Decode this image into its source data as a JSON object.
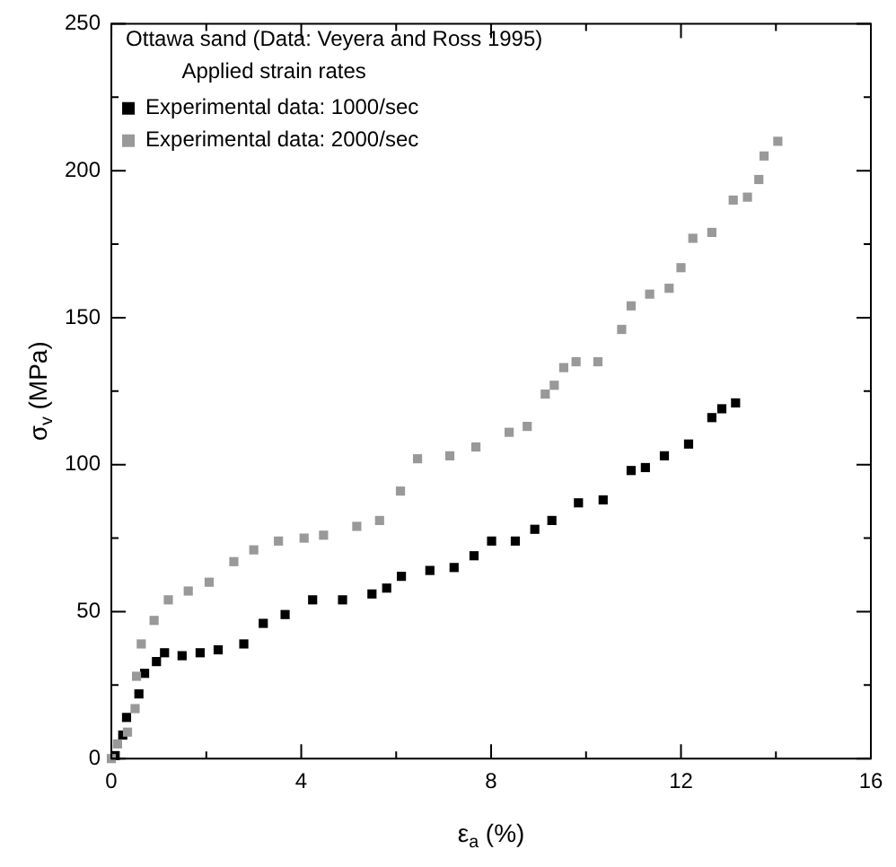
{
  "chart_data": {
    "type": "scatter",
    "title": "Ottawa sand (Data: Veyera and Ross 1995)",
    "legend_title": "Applied strain rates",
    "xlabel": "ε$_{a}$ (%)",
    "ylabel": "σ$_{v}$ (MPa)",
    "xlim": [
      0,
      16
    ],
    "xticks": [
      0,
      {
        "value": 2,
        "label": null
      },
      4,
      {
        "value": 6,
        "label": null
      },
      8,
      {
        "value": 10,
        "label": null
      },
      12,
      {
        "value": 14,
        "label": null
      },
      16
    ],
    "ylim": [
      0,
      250
    ],
    "yticks": [
      0,
      {
        "value": 25,
        "label": null
      },
      50,
      {
        "value": 75,
        "label": null
      },
      100,
      {
        "value": 125,
        "label": null
      },
      150,
      {
        "value": 175,
        "label": null
      },
      200,
      {
        "value": 225,
        "label": null
      },
      250
    ],
    "legend": "top left",
    "marker": "square",
    "grid": false,
    "series": [
      {
        "name": "Experimental data: 1000/sec",
        "color": "#000000",
        "x": [
          0.08,
          0.24,
          0.32,
          0.58,
          0.7,
          0.95,
          1.12,
          1.49,
          1.87,
          2.25,
          2.79,
          3.2,
          3.66,
          4.24,
          4.87,
          5.49,
          5.8,
          6.11,
          6.71,
          7.22,
          7.64,
          8.01,
          8.51,
          8.92,
          9.28,
          9.84,
          10.36,
          10.95,
          11.25,
          11.65,
          12.16,
          12.65,
          12.86,
          13.15
        ],
        "values": [
          1,
          8,
          14,
          22,
          29,
          33,
          36,
          35,
          36,
          37,
          39,
          46,
          49,
          54,
          54,
          56,
          58,
          62,
          64,
          65,
          69,
          74,
          74,
          78,
          81,
          87,
          88,
          98,
          99,
          103,
          107,
          116,
          119,
          121
        ]
      },
      {
        "name": "Experimental data: 2000/sec",
        "color": "#999999",
        "x": [
          0,
          0.13,
          0.34,
          0.5,
          0.53,
          0.63,
          0.9,
          1.2,
          1.62,
          2.06,
          2.58,
          3.0,
          3.52,
          4.06,
          4.47,
          5.17,
          5.65,
          6.09,
          6.45,
          7.13,
          7.68,
          8.38,
          8.76,
          9.14,
          9.33,
          9.53,
          9.79,
          10.25,
          10.75,
          10.95,
          11.34,
          11.75,
          12.0,
          12.25,
          12.65,
          13.1,
          13.4,
          13.64,
          13.75,
          14.04
        ],
        "values": [
          0,
          5,
          9,
          17,
          28,
          39,
          47,
          54,
          57,
          60,
          67,
          71,
          74,
          75,
          76,
          79,
          81,
          91,
          102,
          103,
          106,
          111,
          113,
          124,
          127,
          133,
          135,
          135,
          146,
          154,
          158,
          160,
          167,
          177,
          179,
          190,
          191,
          197,
          205,
          210
        ]
      }
    ]
  }
}
